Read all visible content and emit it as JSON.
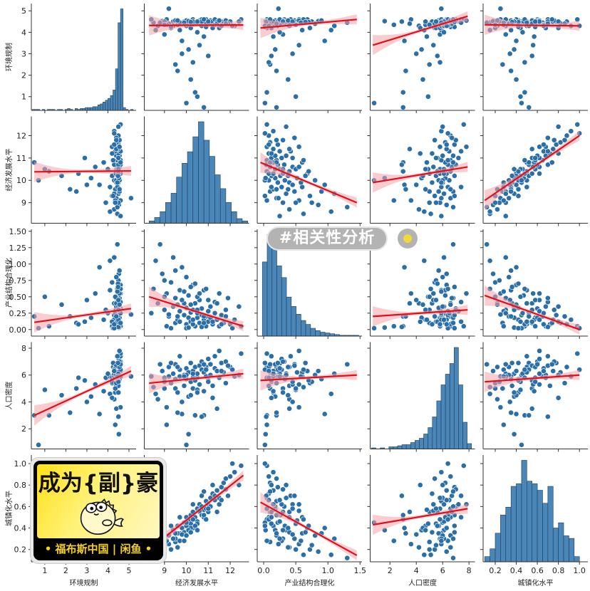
{
  "chart_data": {
    "type": "pairplot",
    "title": "",
    "variables": [
      {
        "name": "环境规制",
        "range": [
          0.36,
          5.34
        ],
        "y_ticks": [
          {
            "v": 1,
            "label": "1"
          },
          {
            "v": 2,
            "label": "2"
          },
          {
            "v": 3,
            "label": "3"
          },
          {
            "v": 4,
            "label": "4"
          },
          {
            "v": 5,
            "label": "5"
          }
        ],
        "x_ticks": [
          {
            "v": 1,
            "label": "1"
          },
          {
            "v": 2,
            "label": "2"
          },
          {
            "v": 3,
            "label": "3"
          },
          {
            "v": 4,
            "label": "4"
          },
          {
            "v": 5,
            "label": "5"
          }
        ]
      },
      {
        "name": "经济发展水平",
        "range": [
          8.08,
          12.86
        ],
        "y_ticks": [
          {
            "v": 9,
            "label": "9"
          },
          {
            "v": 10,
            "label": "10"
          },
          {
            "v": 11,
            "label": "11"
          },
          {
            "v": 12,
            "label": "12"
          }
        ],
        "x_ticks": [
          {
            "v": 9,
            "label": "9"
          },
          {
            "v": 10,
            "label": "10"
          },
          {
            "v": 11,
            "label": "11"
          },
          {
            "v": 12,
            "label": "12"
          }
        ]
      },
      {
        "name": "产业结构合理化",
        "range": [
          -0.1,
          1.53
        ],
        "y_ticks": [
          {
            "v": 0,
            "label": "0.00"
          },
          {
            "v": 0.25,
            "label": "0.25"
          },
          {
            "v": 0.5,
            "label": "0.50"
          },
          {
            "v": 0.75,
            "label": "0.75"
          },
          {
            "v": 1.0,
            "label": "1.00"
          },
          {
            "v": 1.25,
            "label": "1.25"
          },
          {
            "v": 1.5,
            "label": "1.50"
          }
        ],
        "x_ticks": [
          {
            "v": 0,
            "label": "0.0"
          },
          {
            "v": 0.5,
            "label": "0.5"
          },
          {
            "v": 1.0,
            "label": "1.0"
          },
          {
            "v": 1.5,
            "label": "1.5"
          }
        ]
      },
      {
        "name": "人口密度",
        "range": [
          0.5,
          8.45
        ],
        "y_ticks": [
          {
            "v": 2,
            "label": "2"
          },
          {
            "v": 4,
            "label": "4"
          },
          {
            "v": 6,
            "label": "6"
          },
          {
            "v": 8,
            "label": "8"
          }
        ],
        "x_ticks": [
          {
            "v": 2,
            "label": "2"
          },
          {
            "v": 4,
            "label": "4"
          },
          {
            "v": 6,
            "label": "6"
          },
          {
            "v": 8,
            "label": "8"
          }
        ]
      },
      {
        "name": "城镇化水平",
        "range": [
          0.085,
          1.08
        ],
        "y_ticks": [
          {
            "v": 0.2,
            "label": "0.2"
          },
          {
            "v": 0.4,
            "label": "0.4"
          },
          {
            "v": 0.6,
            "label": "0.6"
          },
          {
            "v": 0.8,
            "label": "0.8"
          },
          {
            "v": 1.0,
            "label": "1.0"
          }
        ],
        "x_ticks": [
          {
            "v": 0.2,
            "label": "0.2"
          },
          {
            "v": 0.4,
            "label": "0.4"
          },
          {
            "v": 0.6,
            "label": "0.6"
          },
          {
            "v": 0.8,
            "label": "0.8"
          },
          {
            "v": 1.0,
            "label": "1.0"
          }
        ]
      }
    ],
    "observations_columns": [
      "环境规制",
      "经济发展水平",
      "产业结构合理化",
      "人口密度",
      "城镇化水平"
    ],
    "observations": [
      [
        4.45,
        8.5,
        0.62,
        5.1,
        0.15
      ],
      [
        4.3,
        8.7,
        0.4,
        4.2,
        0.22
      ],
      [
        4.52,
        8.9,
        0.85,
        6.3,
        0.18
      ],
      [
        3.9,
        9.0,
        0.3,
        5.8,
        0.3
      ],
      [
        4.6,
        9.1,
        0.55,
        3.6,
        0.25
      ],
      [
        4.4,
        9.2,
        0.2,
        6.6,
        0.33
      ],
      [
        4.2,
        9.3,
        0.72,
        5.4,
        0.2
      ],
      [
        4.5,
        9.4,
        0.35,
        6.1,
        0.38
      ],
      [
        2.5,
        9.5,
        0.1,
        5.0,
        0.27
      ],
      [
        4.55,
        9.5,
        0.48,
        6.8,
        0.3
      ],
      [
        4.35,
        9.6,
        0.15,
        4.7,
        0.42
      ],
      [
        4.1,
        9.7,
        0.6,
        5.9,
        0.35
      ],
      [
        4.48,
        9.7,
        0.28,
        6.4,
        0.28
      ],
      [
        3.6,
        9.8,
        0.95,
        3.1,
        0.4
      ],
      [
        4.5,
        9.9,
        0.22,
        6.0,
        0.45
      ],
      [
        4.4,
        9.9,
        0.4,
        5.2,
        0.36
      ],
      [
        4.3,
        10.0,
        0.08,
        6.5,
        0.5
      ],
      [
        4.55,
        10.0,
        0.33,
        5.7,
        0.42
      ],
      [
        3.2,
        10.1,
        0.18,
        4.4,
        0.38
      ],
      [
        4.5,
        10.1,
        0.52,
        6.2,
        0.47
      ],
      [
        4.45,
        10.2,
        0.26,
        6.9,
        0.52
      ],
      [
        4.2,
        10.2,
        0.12,
        5.5,
        0.44
      ],
      [
        4.6,
        10.3,
        0.68,
        6.3,
        0.4
      ],
      [
        4.38,
        10.3,
        0.3,
        5.0,
        0.55
      ],
      [
        1.2,
        10.4,
        0.05,
        3.0,
        0.48
      ],
      [
        4.5,
        10.4,
        0.4,
        6.6,
        0.5
      ],
      [
        4.42,
        10.5,
        0.18,
        5.8,
        0.58
      ],
      [
        4.0,
        10.5,
        0.25,
        6.1,
        0.46
      ],
      [
        4.55,
        10.6,
        0.1,
        6.7,
        0.55
      ],
      [
        4.48,
        10.6,
        0.45,
        5.3,
        0.62
      ],
      [
        4.3,
        10.7,
        0.22,
        6.4,
        0.52
      ],
      [
        4.6,
        10.7,
        0.32,
        7.0,
        0.6
      ],
      [
        3.8,
        10.8,
        0.15,
        4.8,
        0.57
      ],
      [
        4.5,
        10.8,
        0.6,
        6.2,
        0.5
      ],
      [
        4.45,
        10.9,
        0.2,
        5.9,
        0.65
      ],
      [
        4.25,
        10.9,
        0.05,
        6.6,
        0.58
      ],
      [
        4.52,
        11.0,
        0.28,
        7.2,
        0.62
      ],
      [
        2.9,
        11.0,
        0.12,
        5.6,
        0.55
      ],
      [
        4.4,
        11.1,
        0.35,
        6.0,
        0.68
      ],
      [
        4.55,
        11.1,
        0.18,
        6.8,
        0.6
      ],
      [
        4.5,
        11.2,
        0.08,
        5.2,
        0.72
      ],
      [
        4.35,
        11.3,
        0.25,
        6.5,
        0.66
      ],
      [
        4.6,
        11.3,
        0.42,
        7.4,
        0.7
      ],
      [
        4.48,
        11.4,
        0.15,
        6.3,
        0.75
      ],
      [
        4.2,
        11.5,
        0.05,
        5.8,
        0.68
      ],
      [
        4.5,
        11.6,
        0.22,
        6.9,
        0.78
      ],
      [
        4.42,
        11.7,
        0.1,
        6.2,
        0.82
      ],
      [
        4.55,
        11.8,
        0.3,
        7.0,
        0.76
      ],
      [
        4.5,
        12.0,
        0.08,
        6.6,
        0.88
      ],
      [
        4.3,
        12.2,
        0.15,
        5.9,
        0.92
      ],
      [
        4.6,
        12.5,
        0.05,
        7.6,
        0.98
      ],
      [
        0.7,
        10.0,
        0.02,
        0.8,
        0.45
      ],
      [
        5.1,
        9.2,
        0.23,
        5.9,
        0.25
      ],
      [
        0.5,
        10.8,
        0.2,
        3.0,
        0.52
      ],
      [
        1.0,
        10.5,
        0.5,
        4.9,
        0.44
      ],
      [
        1.8,
        10.2,
        0.38,
        4.5,
        0.4
      ],
      [
        2.2,
        9.6,
        0.2,
        3.2,
        0.35
      ],
      [
        2.6,
        10.3,
        0.08,
        5.8,
        0.48
      ],
      [
        3.4,
        10.6,
        0.55,
        5.3,
        0.56
      ],
      [
        3.0,
        9.8,
        0.45,
        4.0,
        0.34
      ],
      [
        4.1,
        8.6,
        1.05,
        4.6,
        0.15
      ],
      [
        4.45,
        8.8,
        1.3,
        6.8,
        0.12
      ],
      [
        4.5,
        9.0,
        0.75,
        5.5,
        0.24
      ],
      [
        4.3,
        9.4,
        1.1,
        6.1,
        0.3
      ],
      [
        4.55,
        9.5,
        0.9,
        5.7,
        0.35
      ],
      [
        4.4,
        10.0,
        0.8,
        6.0,
        0.33
      ],
      [
        4.48,
        10.4,
        0.7,
        5.6,
        0.42
      ],
      [
        4.6,
        10.9,
        0.62,
        6.4,
        0.48
      ],
      [
        4.35,
        9.1,
        0.05,
        2.3,
        0.28
      ],
      [
        4.52,
        10.1,
        0.03,
        1.6,
        0.38
      ],
      [
        4.4,
        11.4,
        0.4,
        3.5,
        0.55
      ],
      [
        4.5,
        10.7,
        0.04,
        2.9,
        0.7
      ],
      [
        4.25,
        9.3,
        0.02,
        6.9,
        0.42
      ],
      [
        4.45,
        9.7,
        0.12,
        7.4,
        0.5
      ],
      [
        4.6,
        8.4,
        0.25,
        5.9,
        0.3
      ],
      [
        4.5,
        12.4,
        0.35,
        6.0,
        0.8
      ],
      [
        4.4,
        11.9,
        0.48,
        6.7,
        0.7
      ],
      [
        4.55,
        11.5,
        0.55,
        7.8,
        0.62
      ],
      [
        4.3,
        12.1,
        0.02,
        6.4,
        1.0
      ],
      [
        4.5,
        10.3,
        0.15,
        6.1,
        0.62
      ],
      [
        4.45,
        9.9,
        0.58,
        5.9,
        0.28
      ],
      [
        4.2,
        11.2,
        0.12,
        4.3,
        0.8
      ],
      [
        4.5,
        10.5,
        0.3,
        4.7,
        0.38
      ],
      [
        4.55,
        9.6,
        0.38,
        6.6,
        0.22
      ],
      [
        4.4,
        11.8,
        0.2,
        5.4,
        0.86
      ],
      [
        4.6,
        10.8,
        0.1,
        6.8,
        0.74
      ],
      [
        4.35,
        9.0,
        0.5,
        5.0,
        0.2
      ],
      [
        4.5,
        11.0,
        0.45,
        5.5,
        0.58
      ],
      [
        4.48,
        10.2,
        0.65,
        6.9,
        0.36
      ],
      [
        4.3,
        11.6,
        0.08,
        6.3,
        0.66
      ]
    ],
    "histograms": [
      {
        "var": 0,
        "start": 0.4,
        "step": 0.12,
        "counts": [
          1,
          1,
          1,
          0,
          1,
          0,
          1,
          1,
          1,
          0,
          1,
          1,
          0,
          1,
          2,
          1,
          0,
          2,
          1,
          2,
          2,
          3,
          3,
          3,
          4,
          4,
          6,
          7,
          9,
          11,
          13,
          16,
          22,
          45,
          95,
          110,
          3,
          1,
          0,
          1
        ]
      },
      {
        "var": 1,
        "start": 8.3,
        "step": 0.25,
        "counts": [
          2,
          5,
          10,
          18,
          26,
          40,
          52,
          62,
          75,
          88,
          72,
          58,
          42,
          30,
          18,
          10,
          4,
          2
        ]
      },
      {
        "var": 2,
        "start": -0.02,
        "step": 0.075,
        "counts": [
          95,
          130,
          125,
          90,
          75,
          50,
          38,
          28,
          20,
          15,
          10,
          7,
          5,
          4,
          3,
          2,
          1,
          1,
          1,
          1
        ]
      },
      {
        "var": 3,
        "start": 0.6,
        "step": 0.33,
        "counts": [
          1,
          0,
          1,
          0,
          2,
          2,
          3,
          4,
          4,
          6,
          8,
          10,
          14,
          20,
          30,
          45,
          60,
          70,
          80,
          95,
          60,
          25,
          5
        ]
      },
      {
        "var": 4,
        "start": 0.1,
        "step": 0.05,
        "counts": [
          4,
          10,
          22,
          36,
          42,
          58,
          60,
          78,
          62,
          60,
          55,
          45,
          58,
          26,
          30,
          20,
          18,
          4
        ]
      }
    ],
    "regression_lines": [
      {
        "y_var": 0,
        "x_var": 1,
        "x0": 8.3,
        "y0": 4.32,
        "x1": 12.6,
        "y1": 4.34
      },
      {
        "y_var": 0,
        "x_var": 2,
        "x0": -0.05,
        "y0": 4.2,
        "x1": 1.45,
        "y1": 4.6
      },
      {
        "y_var": 0,
        "x_var": 3,
        "x0": 0.7,
        "y0": 3.4,
        "x1": 7.9,
        "y1": 4.75
      },
      {
        "y_var": 0,
        "x_var": 4,
        "x0": 0.1,
        "y0": 4.35,
        "x1": 1.0,
        "y1": 4.3
      },
      {
        "y_var": 1,
        "x_var": 0,
        "x0": 0.5,
        "y0": 10.38,
        "x1": 5.1,
        "y1": 10.42
      },
      {
        "y_var": 1,
        "x_var": 2,
        "x0": -0.05,
        "y0": 10.8,
        "x1": 1.45,
        "y1": 9.0
      },
      {
        "y_var": 1,
        "x_var": 3,
        "x0": 0.7,
        "y0": 9.9,
        "x1": 7.9,
        "y1": 10.6
      },
      {
        "y_var": 1,
        "x_var": 4,
        "x0": 0.1,
        "y0": 9.1,
        "x1": 1.0,
        "y1": 12.0
      },
      {
        "y_var": 2,
        "x_var": 0,
        "x0": 0.5,
        "y0": 0.11,
        "x1": 5.1,
        "y1": 0.32
      },
      {
        "y_var": 2,
        "x_var": 1,
        "x0": 8.3,
        "y0": 0.5,
        "x1": 12.6,
        "y1": 0.05
      },
      {
        "y_var": 2,
        "x_var": 3,
        "x0": 0.7,
        "y0": 0.2,
        "x1": 7.9,
        "y1": 0.3
      },
      {
        "y_var": 2,
        "x_var": 4,
        "x0": 0.1,
        "y0": 0.52,
        "x1": 1.0,
        "y1": 0.0
      },
      {
        "y_var": 3,
        "x_var": 0,
        "x0": 0.5,
        "y0": 3.0,
        "x1": 5.1,
        "y1": 6.3
      },
      {
        "y_var": 3,
        "x_var": 1,
        "x0": 8.3,
        "y0": 5.4,
        "x1": 12.6,
        "y1": 6.1
      },
      {
        "y_var": 3,
        "x_var": 2,
        "x0": -0.05,
        "y0": 5.6,
        "x1": 1.45,
        "y1": 6.0
      },
      {
        "y_var": 3,
        "x_var": 4,
        "x0": 0.1,
        "y0": 5.5,
        "x1": 1.0,
        "y1": 6.0
      },
      {
        "y_var": 4,
        "x_var": 0,
        "x0": 0.5,
        "y0": 0.45,
        "x1": 5.1,
        "y1": 0.5
      },
      {
        "y_var": 4,
        "x_var": 1,
        "x0": 8.3,
        "y0": 0.2,
        "x1": 12.6,
        "y1": 0.89
      },
      {
        "y_var": 4,
        "x_var": 2,
        "x0": -0.05,
        "y0": 0.64,
        "x1": 1.45,
        "y1": 0.145
      },
      {
        "y_var": 4,
        "x_var": 3,
        "x0": 0.7,
        "y0": 0.43,
        "x1": 7.9,
        "y1": 0.58
      }
    ],
    "colors": {
      "point": "#2a6fa8",
      "hist": "#4a86b8",
      "hist_edge": "#1f3d5a",
      "line": "#e0101a",
      "band": "#f4a3a8"
    }
  },
  "watermarks": {
    "tag": "#相关性分析",
    "badge_title": "成为{副}豪",
    "badge_footer": "• 福布斯中国 | 闲鱼 •"
  }
}
